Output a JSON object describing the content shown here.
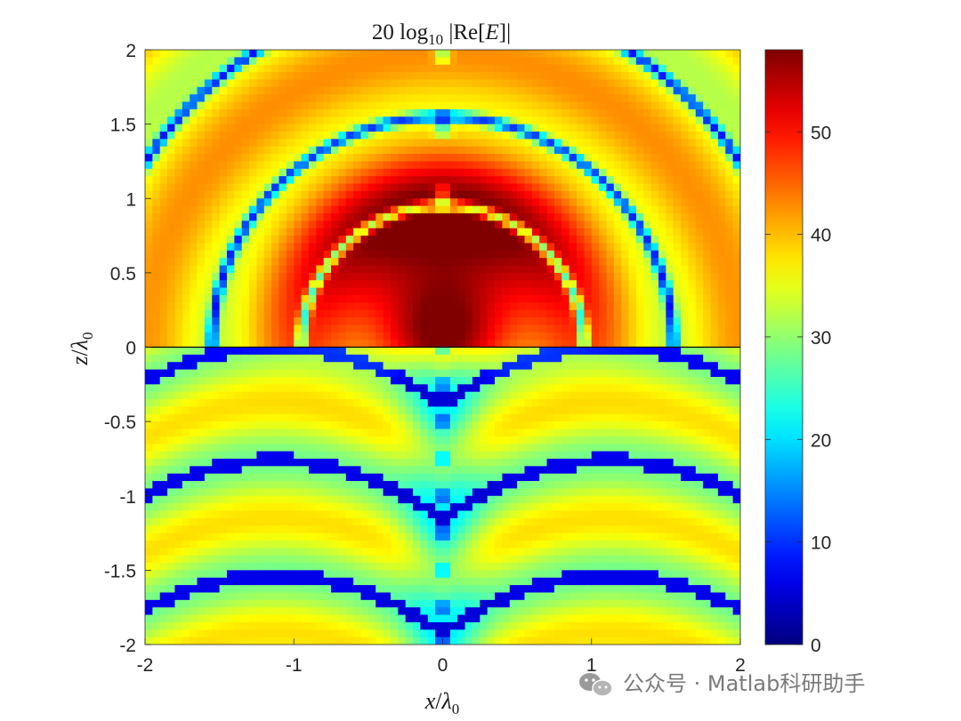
{
  "chart_data": {
    "type": "heatmap",
    "title": "20 log10 |Re[E]|",
    "title_parts": {
      "main": "20 log",
      "sub": "10",
      "rest": " |Re[",
      "var": "E",
      "end": "]|"
    },
    "xlabel": {
      "var": "x",
      "slash": "/",
      "lam": "λ",
      "sub": "0"
    },
    "ylabel": {
      "var": "z",
      "slash": "/",
      "lam": "λ",
      "sub": "0"
    },
    "xlim": [
      -2,
      2
    ],
    "ylim": [
      -2,
      2
    ],
    "x_ticks": [
      -2,
      -1,
      0,
      1,
      2
    ],
    "x_tick_labels": [
      "-2",
      "-1",
      "0",
      "1",
      "2"
    ],
    "y_ticks": [
      -2,
      -1.5,
      -1,
      -0.5,
      0,
      0.5,
      1,
      1.5,
      2
    ],
    "y_tick_labels": [
      "-2",
      "-1.5",
      "-1",
      "-0.5",
      "0",
      "0.5",
      "1",
      "1.5",
      "2"
    ],
    "colorbar": {
      "limits": [
        0,
        58
      ],
      "ticks": [
        0,
        10,
        20,
        30,
        40,
        50
      ],
      "tick_labels": [
        "0",
        "10",
        "20",
        "30",
        "40",
        "50"
      ],
      "colormap": "jet"
    },
    "interface_line_z": 0,
    "grid": false,
    "field_summary": {
      "upper_peak_location": [
        0,
        0.55
      ],
      "upper_peak_value": 58,
      "upper_background_value": 37,
      "lower_background_value": 33,
      "null_value": 5
    }
  },
  "watermark": {
    "icon": "wechat-icon",
    "text": "公众号 · Matlab科研助手"
  }
}
